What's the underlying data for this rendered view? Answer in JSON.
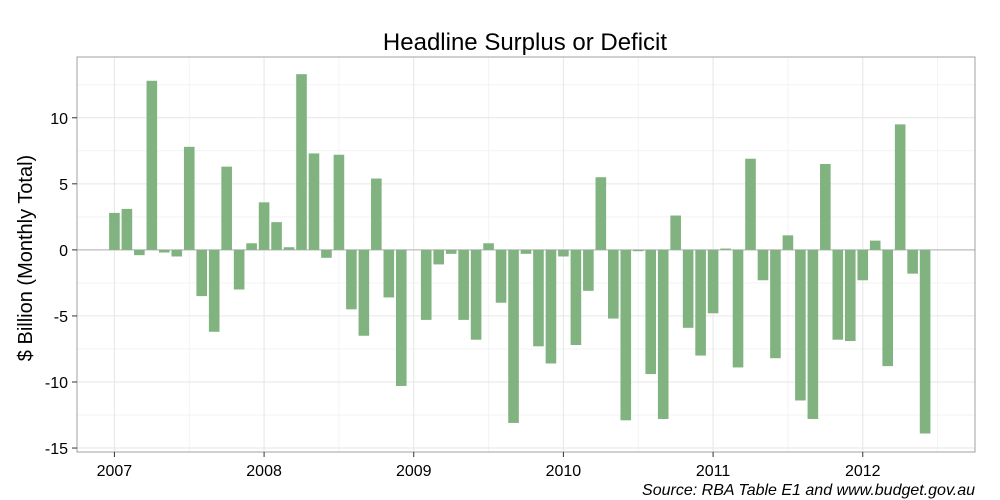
{
  "chart_data": {
    "type": "bar",
    "title": "Headline Surplus or Deficit",
    "ylabel": "$ Billion (Monthly Total)",
    "xlabel": "",
    "caption": "Source: RBA Table E1 and www.budget.gov.au",
    "bar_color": "#80b37f",
    "zero_line_color": "#b0b0b0",
    "grid": true,
    "ylim": [
      -15.3,
      14.6
    ],
    "yticks": [
      -15,
      -10,
      -5,
      0,
      5,
      10
    ],
    "ytick_labels": [
      "-15",
      "-10",
      "-5",
      "0",
      "5",
      "10"
    ],
    "xlim": [
      "2006-10",
      "2012-10"
    ],
    "xticks": [
      "2007-01",
      "2008-01",
      "2009-01",
      "2010-01",
      "2011-01",
      "2012-01"
    ],
    "xtick_labels": [
      "2007",
      "2008",
      "2009",
      "2010",
      "2011",
      "2012"
    ],
    "series": [
      {
        "x": [
          "2007-01",
          "2007-02",
          "2007-03",
          "2007-04",
          "2007-05",
          "2007-06",
          "2007-07",
          "2007-08",
          "2007-09",
          "2007-10",
          "2007-11",
          "2007-12",
          "2008-01",
          "2008-02",
          "2008-03",
          "2008-04",
          "2008-05",
          "2008-06",
          "2008-07",
          "2008-08",
          "2008-09",
          "2008-10",
          "2008-11",
          "2008-12",
          "2009-01",
          "2009-02",
          "2009-03",
          "2009-04",
          "2009-05",
          "2009-06",
          "2009-07",
          "2009-08",
          "2009-09",
          "2009-10",
          "2009-11",
          "2009-12",
          "2010-01",
          "2010-02",
          "2010-03",
          "2010-04",
          "2010-05",
          "2010-06",
          "2010-07",
          "2010-08",
          "2010-09",
          "2010-10",
          "2010-11",
          "2010-12",
          "2011-01",
          "2011-02",
          "2011-03",
          "2011-04",
          "2011-05",
          "2011-06",
          "2011-07",
          "2011-08",
          "2011-09",
          "2011-10",
          "2011-11",
          "2011-12",
          "2012-01",
          "2012-02",
          "2012-03",
          "2012-04",
          "2012-05",
          "2012-06"
        ],
        "values": [
          2.8,
          3.1,
          -0.4,
          12.8,
          -0.2,
          -0.5,
          7.8,
          -3.5,
          -6.2,
          6.3,
          -3.0,
          0.5,
          3.6,
          2.1,
          0.2,
          13.3,
          7.3,
          -0.6,
          7.2,
          -4.5,
          -6.5,
          5.4,
          -3.6,
          -10.3,
          0.0,
          -5.3,
          -1.1,
          -0.3,
          -5.3,
          -6.8,
          0.5,
          -4.0,
          -13.1,
          -0.3,
          -7.3,
          -8.6,
          -0.5,
          -7.2,
          -3.1,
          5.5,
          -5.2,
          -12.9,
          -0.1,
          -9.4,
          -12.8,
          2.6,
          -5.9,
          -8.0,
          -4.8,
          0.1,
          -8.9,
          6.9,
          -2.3,
          -8.2,
          1.1,
          -11.4,
          -12.8,
          6.5,
          -6.8,
          -6.9,
          -2.3,
          0.7,
          -8.8,
          9.5,
          -1.8,
          -13.9
        ]
      }
    ]
  }
}
